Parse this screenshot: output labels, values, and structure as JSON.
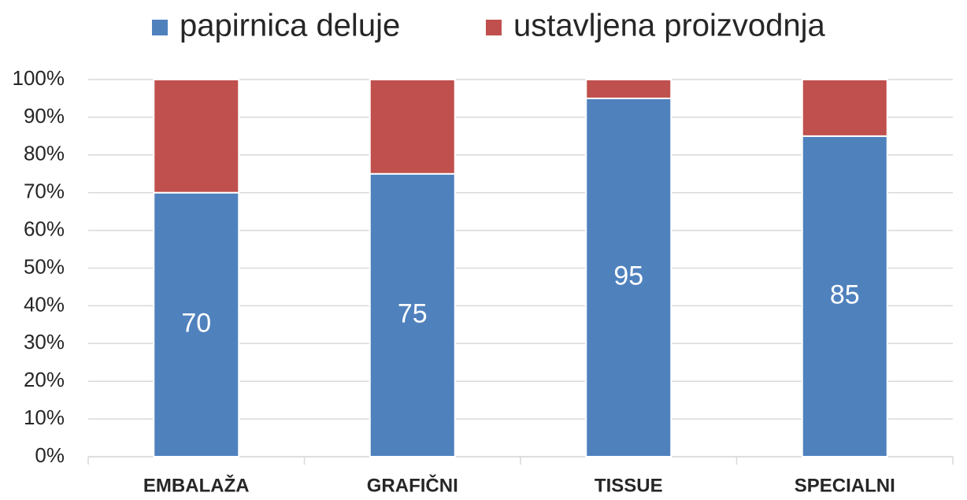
{
  "chart_data": {
    "type": "stacked_bar",
    "categories": [
      "EMBALAŽA",
      "GRAFIČNI",
      "TISSUE",
      "SPECIALNI"
    ],
    "series": [
      {
        "name": "papirnica deluje",
        "color": "#4f81bd",
        "values": [
          70,
          75,
          95,
          85
        ]
      },
      {
        "name": "ustavljena proizvodnja",
        "color": "#c0504d",
        "values": [
          30,
          25,
          5,
          15
        ]
      }
    ],
    "ylim": [
      0,
      100
    ],
    "yticks": [
      {
        "value": 0,
        "label": "0%"
      },
      {
        "value": 10,
        "label": "10%"
      },
      {
        "value": 20,
        "label": "20%"
      },
      {
        "value": 30,
        "label": "30%"
      },
      {
        "value": 40,
        "label": "40%"
      },
      {
        "value": 50,
        "label": "50%"
      },
      {
        "value": 60,
        "label": "60%"
      },
      {
        "value": 70,
        "label": "70%"
      },
      {
        "value": 80,
        "label": "80%"
      },
      {
        "value": 90,
        "label": "90%"
      },
      {
        "value": 100,
        "label": "100%"
      }
    ],
    "grid": true,
    "legend": "top",
    "data_labels_series": 0
  }
}
